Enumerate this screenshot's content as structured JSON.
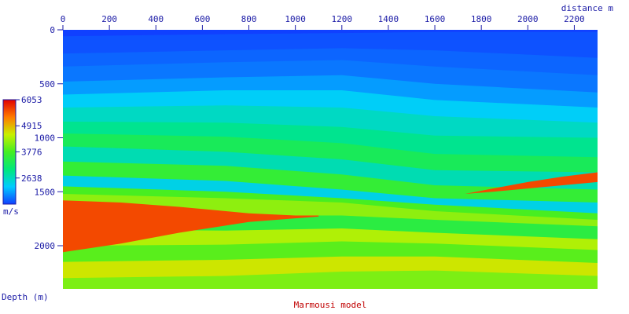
{
  "chart_data": {
    "type": "heatmap",
    "title": "Marmousi model",
    "xlabel": "distance m",
    "ylabel": "Depth (m)",
    "xlim": [
      0,
      2300
    ],
    "ylim": [
      0,
      2400
    ],
    "x_ticks": [
      {
        "value": 0,
        "label": "0"
      },
      {
        "value": 200,
        "label": "200"
      },
      {
        "value": 400,
        "label": "400"
      },
      {
        "value": 600,
        "label": "600"
      },
      {
        "value": 800,
        "label": "800"
      },
      {
        "value": 1000,
        "label": "1000"
      },
      {
        "value": 1200,
        "label": "1200"
      },
      {
        "value": 1400,
        "label": "1400"
      },
      {
        "value": 1600,
        "label": "1600"
      },
      {
        "value": 1800,
        "label": "1800"
      },
      {
        "value": 2000,
        "label": "2000"
      },
      {
        "value": 2200,
        "label": "2200"
      }
    ],
    "y_ticks": [
      {
        "value": 0,
        "label": "0"
      },
      {
        "value": 500,
        "label": "500"
      },
      {
        "value": 1000,
        "label": "1000"
      },
      {
        "value": 1500,
        "label": "1500"
      },
      {
        "value": 2000,
        "label": "2000"
      }
    ],
    "colorbar": {
      "unit": "m/s",
      "range": [
        1500,
        6053
      ],
      "ticks": [
        {
          "value": 6053,
          "label": "6053"
        },
        {
          "value": 4915,
          "label": "4915"
        },
        {
          "value": 3776,
          "label": "3776"
        },
        {
          "value": 2638,
          "label": "2638"
        }
      ],
      "colors": [
        "#1040ff",
        "#00ccff",
        "#00e87a",
        "#44ee22",
        "#c8f000",
        "#ff7a00",
        "#e00000"
      ]
    },
    "layers": [
      {
        "x": [
          0,
          700,
          1200,
          1600,
          2300
        ],
        "y": [
          0,
          0,
          0,
          0,
          0
        ],
        "velocity": 1500
      },
      {
        "x": [
          0,
          700,
          1200,
          1600,
          2300
        ],
        "y": [
          60,
          40,
          30,
          20,
          20
        ],
        "velocity": 1600
      },
      {
        "x": [
          0,
          700,
          1200,
          1600,
          2300
        ],
        "y": [
          220,
          190,
          170,
          190,
          260
        ],
        "velocity": 1700
      },
      {
        "x": [
          0,
          700,
          1200,
          1600,
          2300
        ],
        "y": [
          340,
          300,
          280,
          340,
          420
        ],
        "velocity": 1800
      },
      {
        "x": [
          0,
          700,
          1200,
          1600,
          2300
        ],
        "y": [
          480,
          440,
          420,
          500,
          580
        ],
        "velocity": 2000
      },
      {
        "x": [
          0,
          700,
          1200,
          1600,
          2300
        ],
        "y": [
          600,
          560,
          560,
          650,
          720
        ],
        "velocity": 2300
      },
      {
        "x": [
          0,
          700,
          1200,
          1600,
          2300
        ],
        "y": [
          720,
          700,
          720,
          800,
          860
        ],
        "velocity": 2600
      },
      {
        "x": [
          0,
          700,
          1200,
          1600,
          2300
        ],
        "y": [
          850,
          860,
          900,
          980,
          1000
        ],
        "velocity": 2900
      },
      {
        "x": [
          0,
          700,
          1200,
          1600,
          2300
        ],
        "y": [
          960,
          990,
          1050,
          1150,
          1180
        ],
        "velocity": 3300
      },
      {
        "x": [
          0,
          700,
          1200,
          1600,
          2300
        ],
        "y": [
          1080,
          1130,
          1200,
          1300,
          1320
        ],
        "velocity": 2700
      },
      {
        "x": [
          0,
          700,
          1200,
          1600,
          2300
        ],
        "y": [
          1220,
          1260,
          1340,
          1440,
          1480
        ],
        "velocity": 3600
      },
      {
        "x": [
          0,
          700,
          1200,
          1600,
          2300
        ],
        "y": [
          1350,
          1400,
          1480,
          1560,
          1600
        ],
        "velocity": 2400
      },
      {
        "x": [
          0,
          700,
          1200,
          1600,
          2300
        ],
        "y": [
          1450,
          1500,
          1560,
          1620,
          1700
        ],
        "velocity": 3800
      },
      {
        "x": [
          0,
          700,
          1200,
          1600,
          2300
        ],
        "y": [
          1520,
          1560,
          1600,
          1680,
          1760
        ],
        "velocity": 4200
      },
      {
        "x": [
          0,
          700,
          1200,
          1600,
          2300
        ],
        "y": [
          1700,
          1720,
          1720,
          1760,
          1820
        ],
        "velocity": 3500
      },
      {
        "x": [
          0,
          700,
          1200,
          1600,
          2300
        ],
        "y": [
          1850,
          1860,
          1840,
          1880,
          1940
        ],
        "velocity": 4400
      },
      {
        "x": [
          0,
          700,
          1200,
          1600,
          2300
        ],
        "y": [
          2000,
          1990,
          1960,
          1980,
          2040
        ],
        "velocity": 3900
      },
      {
        "x": [
          0,
          700,
          1200,
          1600,
          2300
        ],
        "y": [
          2150,
          2130,
          2100,
          2100,
          2160
        ],
        "velocity": 4600
      },
      {
        "x": [
          0,
          700,
          1200,
          1600,
          2300
        ],
        "y": [
          2300,
          2280,
          2240,
          2230,
          2280
        ],
        "velocity": 4100
      }
    ],
    "high_velocity_bodies": [
      {
        "x": [
          0,
          250,
          500,
          800,
          1000,
          1100,
          1100,
          800,
          500,
          250,
          0
        ],
        "y": [
          1580,
          1600,
          1640,
          1700,
          1720,
          1720,
          1730,
          1780,
          1880,
          1980,
          2060
        ],
        "velocity": 5600
      },
      {
        "x": [
          1730,
          1850,
          2000,
          2150,
          2300,
          2300,
          2150,
          2000,
          1850,
          1730
        ],
        "y": [
          1520,
          1470,
          1410,
          1360,
          1320,
          1410,
          1440,
          1470,
          1500,
          1520
        ],
        "velocity": 5600
      }
    ]
  }
}
